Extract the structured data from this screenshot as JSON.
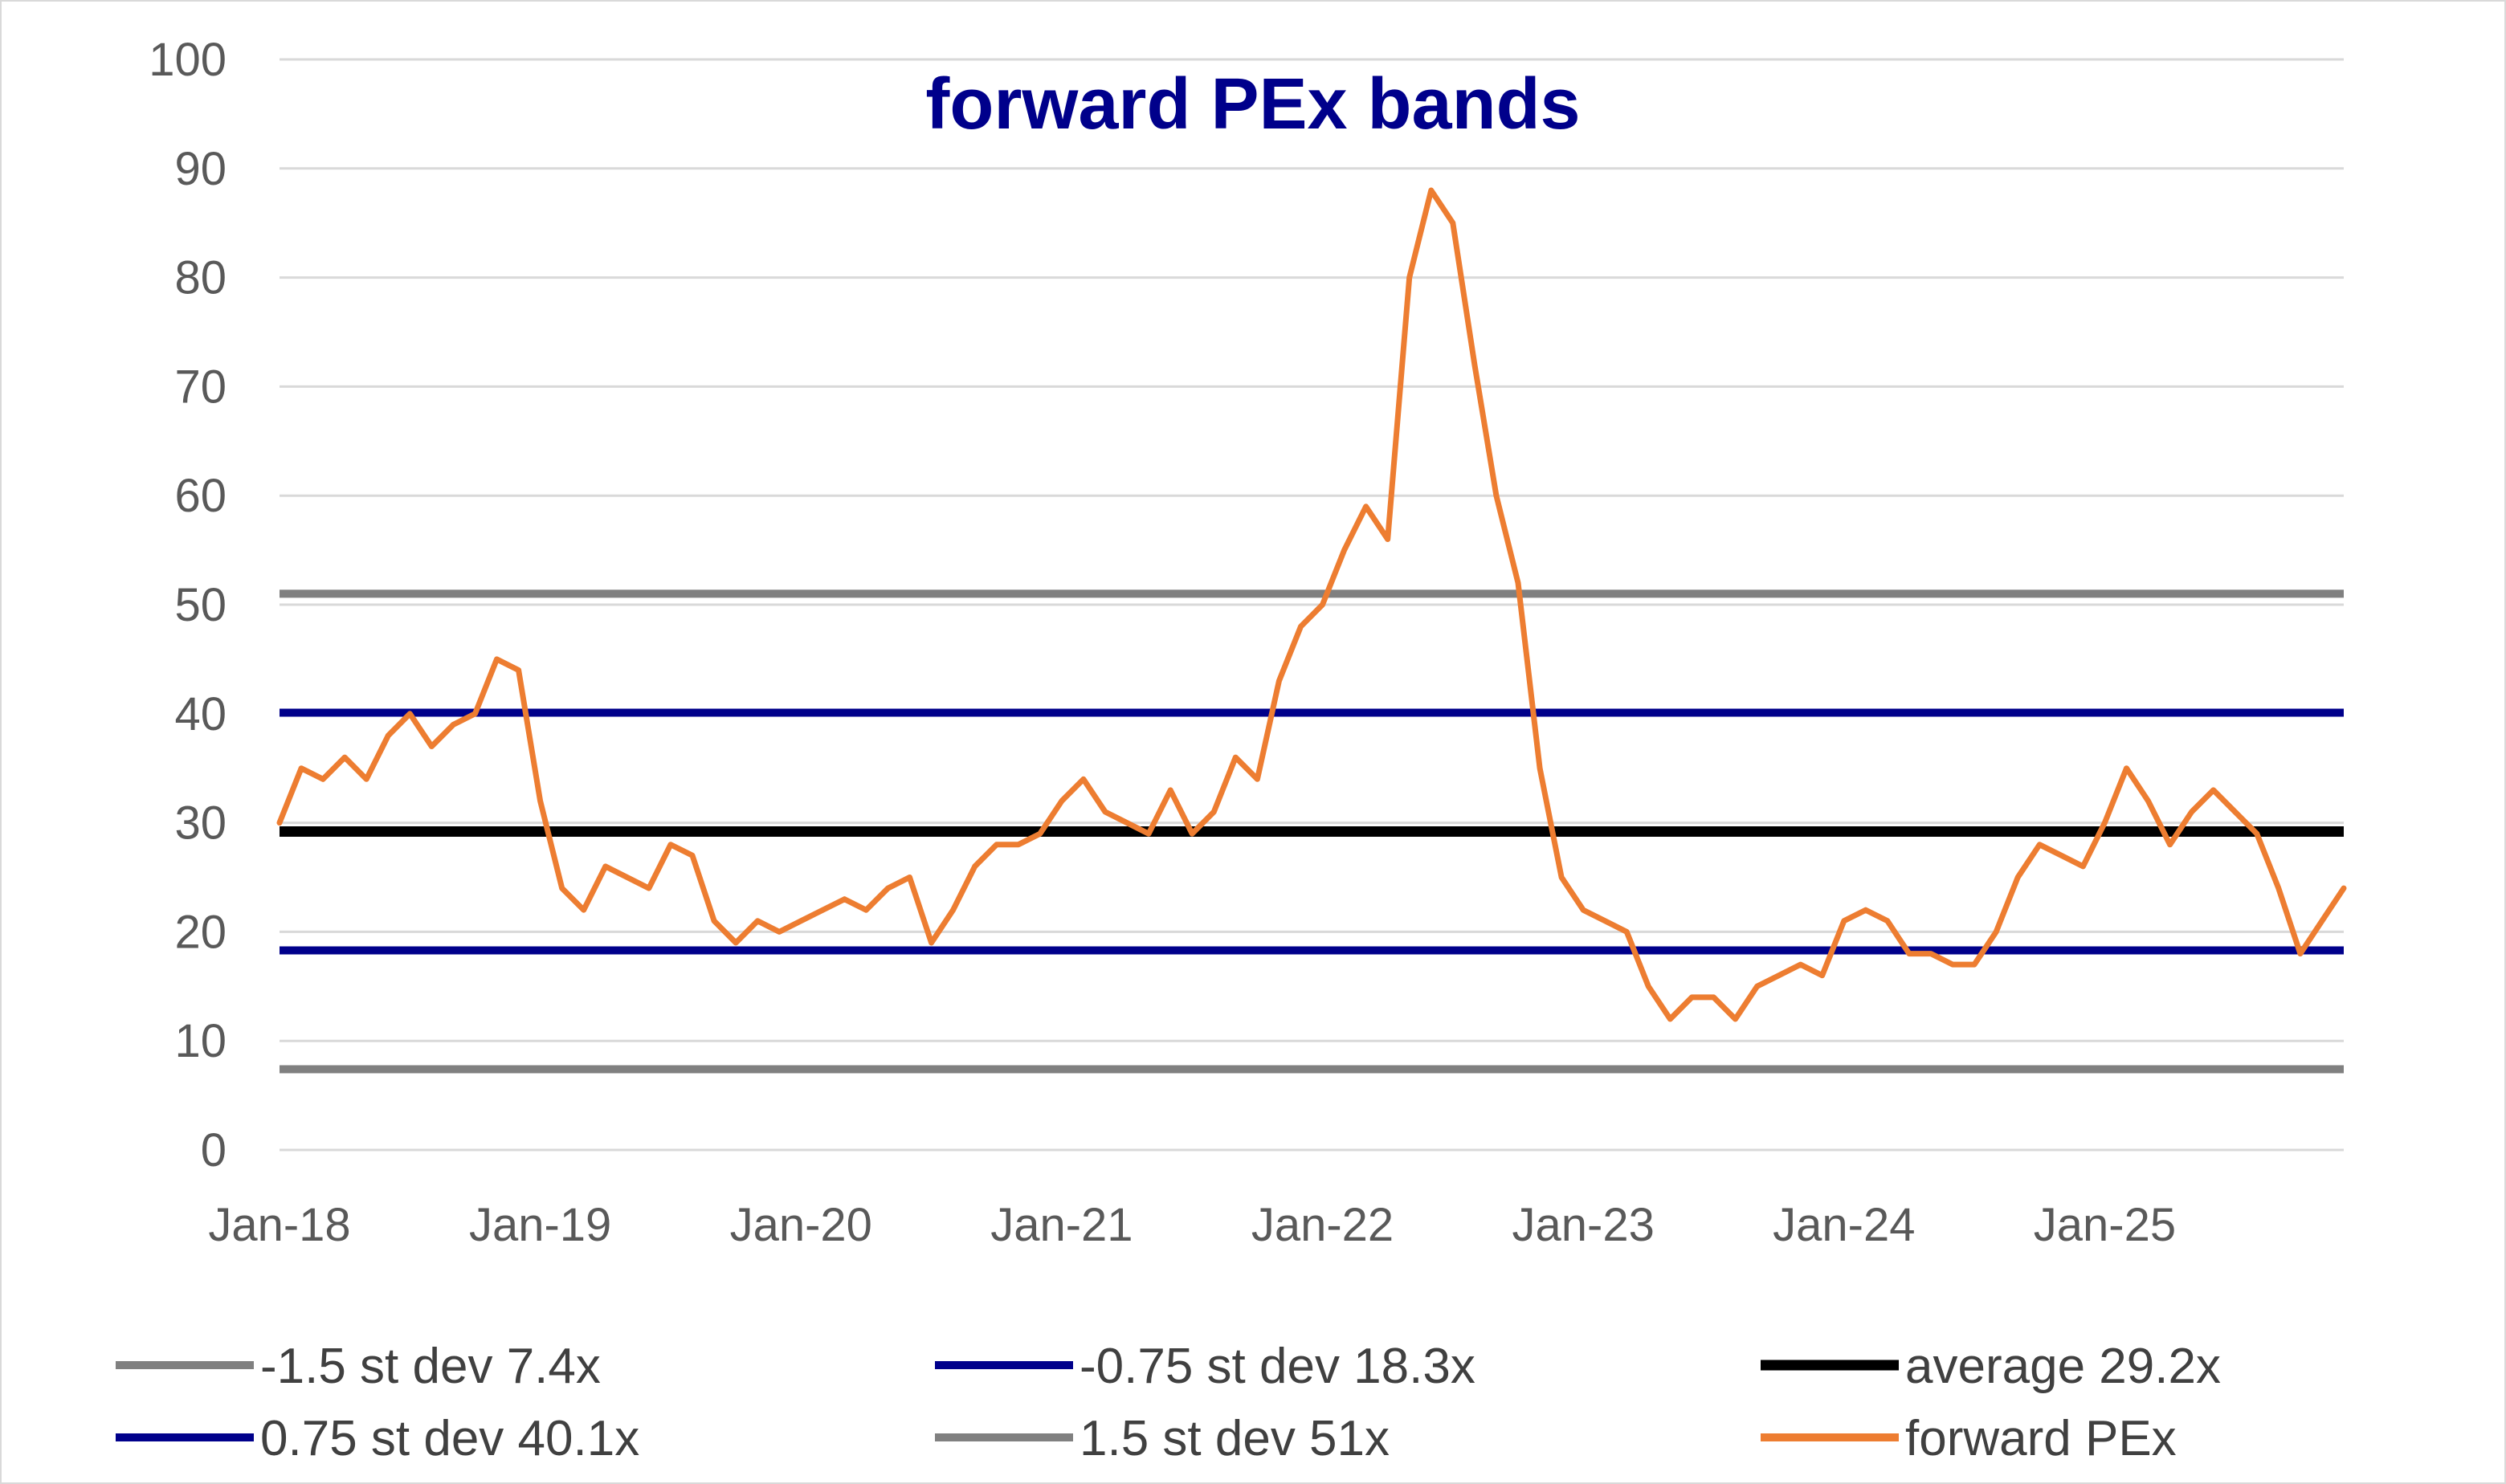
{
  "chart_data": {
    "type": "line",
    "title": "forward PEx bands",
    "ylim": [
      0,
      100
    ],
    "y_ticks": [
      "0",
      "10",
      "20",
      "30",
      "40",
      "50",
      "60",
      "70",
      "80",
      "90",
      "100"
    ],
    "x_ticks": [
      "Jan-18",
      "Jan-19",
      "Jan-20",
      "Jan-21",
      "Jan-22",
      "Jan-23",
      "Jan-24",
      "Jan-25"
    ],
    "x_range": [
      "2018-01",
      "2025-12"
    ],
    "grid": "horizontal",
    "legend_position": "bottom",
    "bands": [
      {
        "name": "-1.5 st dev 7.4x",
        "value": 7.4,
        "color": "#808080"
      },
      {
        "name": "-0.75 st dev 18.3x",
        "value": 18.3,
        "color": "#00008b"
      },
      {
        "name": "average 29.2x",
        "value": 29.2,
        "color": "#000000"
      },
      {
        "name": "0.75 st dev 40.1x",
        "value": 40.1,
        "color": "#00008b"
      },
      {
        "name": "1.5 st dev 51x",
        "value": 51.0,
        "color": "#808080"
      }
    ],
    "series": [
      {
        "name": "forward PEx",
        "color": "#ed7d31",
        "x": [
          "2018-01",
          "2018-02",
          "2018-03",
          "2018-04",
          "2018-05",
          "2018-06",
          "2018-07",
          "2018-08",
          "2018-09",
          "2018-10",
          "2018-11",
          "2018-12",
          "2019-01",
          "2019-02",
          "2019-03",
          "2019-04",
          "2019-05",
          "2019-06",
          "2019-07",
          "2019-08",
          "2019-09",
          "2019-10",
          "2019-11",
          "2019-12",
          "2020-01",
          "2020-02",
          "2020-03",
          "2020-04",
          "2020-05",
          "2020-06",
          "2020-07",
          "2020-08",
          "2020-09",
          "2020-10",
          "2020-11",
          "2020-12",
          "2021-01",
          "2021-02",
          "2021-03",
          "2021-04",
          "2021-05",
          "2021-06",
          "2021-07",
          "2021-08",
          "2021-09",
          "2021-10",
          "2021-11",
          "2021-12",
          "2022-01",
          "2022-02",
          "2022-03",
          "2022-04",
          "2022-05",
          "2022-06",
          "2022-07",
          "2022-08",
          "2022-09",
          "2022-10",
          "2022-11",
          "2022-12",
          "2023-01",
          "2023-02",
          "2023-03",
          "2023-04",
          "2023-05",
          "2023-06",
          "2023-07",
          "2023-08",
          "2023-09",
          "2023-10",
          "2023-11",
          "2023-12",
          "2024-01",
          "2024-02",
          "2024-03",
          "2024-04",
          "2024-05",
          "2024-06",
          "2024-07",
          "2024-08",
          "2024-09",
          "2024-10",
          "2024-11",
          "2024-12",
          "2025-01",
          "2025-02",
          "2025-03",
          "2025-04",
          "2025-05",
          "2025-06",
          "2025-07",
          "2025-08",
          "2025-09",
          "2025-10",
          "2025-11",
          "2025-12"
        ],
        "values": [
          30,
          35,
          34,
          36,
          34,
          38,
          40,
          37,
          39,
          40,
          45,
          44,
          32,
          24,
          22,
          26,
          25,
          24,
          28,
          27,
          21,
          19,
          21,
          20,
          21,
          22,
          23,
          22,
          24,
          25,
          19,
          22,
          26,
          28,
          28,
          29,
          32,
          34,
          31,
          30,
          29,
          33,
          29,
          31,
          36,
          34,
          43,
          48,
          50,
          55,
          59,
          56,
          80,
          88,
          85,
          72,
          60,
          52,
          35,
          25,
          22,
          21,
          20,
          15,
          12,
          14,
          14,
          12,
          15,
          16,
          17,
          16,
          21,
          22,
          21,
          18,
          18,
          17,
          17,
          20,
          25,
          28,
          27,
          26,
          30,
          35,
          32,
          28,
          31,
          33,
          31,
          29,
          24,
          18,
          21,
          24
        ]
      }
    ]
  }
}
